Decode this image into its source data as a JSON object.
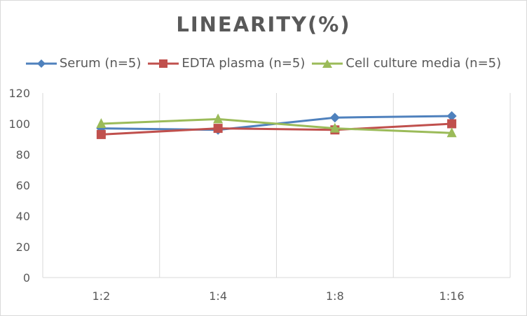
{
  "chart_data": {
    "type": "line",
    "title": "LINEARITY(%)",
    "categories": [
      "1:2",
      "1:4",
      "1:8",
      "1:16"
    ],
    "ylim": [
      0,
      120
    ],
    "yticks": [
      0,
      20,
      40,
      60,
      80,
      100,
      120
    ],
    "grid": "vertical",
    "legend": "top",
    "series": [
      {
        "name": "Serum (n=5)",
        "color": "#4f81bd",
        "marker": "diamond",
        "values": [
          97,
          96,
          104,
          105
        ]
      },
      {
        "name": "EDTA plasma (n=5)",
        "color": "#c0504d",
        "marker": "square",
        "values": [
          93,
          97,
          96,
          100
        ]
      },
      {
        "name": "Cell culture media (n=5)",
        "color": "#9bbb59",
        "marker": "triangle",
        "values": [
          100,
          103,
          97,
          94
        ]
      }
    ]
  }
}
